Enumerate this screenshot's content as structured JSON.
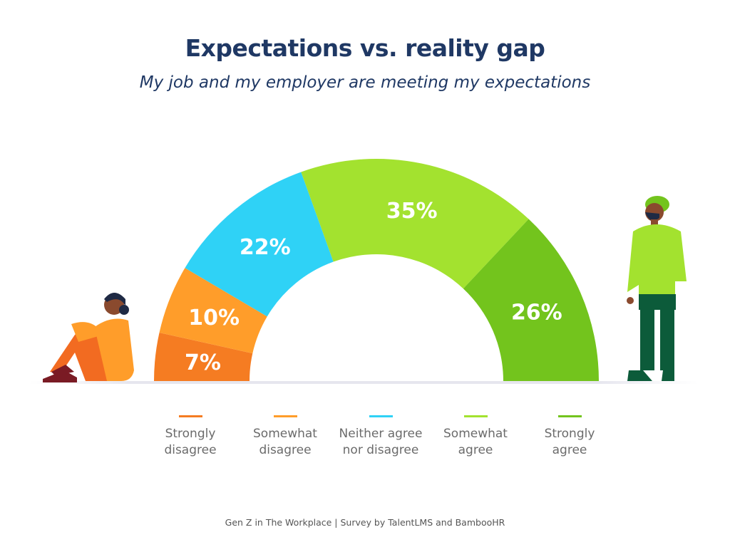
{
  "title": "Expectations vs. reality gap",
  "subtitle": "My job and my employer are meeting my expectations",
  "footer": "Gen Z in The Workplace | Survey by TalentLMS and BambooHR",
  "chart_data": {
    "type": "pie",
    "variant": "semi-donut",
    "title": "Expectations vs. reality gap",
    "subtitle": "My job and my employer are meeting my expectations",
    "legend_position": "bottom",
    "categories": [
      "Strongly disagree",
      "Somewhat disagree",
      "Neither agree nor disagree",
      "Somewhat agree",
      "Strongly agree"
    ],
    "legend_labels": [
      "Strongly\ndisagree",
      "Somewhat\ndisagree",
      "Neither agree\nnor disagree",
      "Somewhat\nagree",
      "Strongly\nagree"
    ],
    "values": [
      7,
      10,
      22,
      35,
      26
    ],
    "data_labels": [
      "7%",
      "10%",
      "22%",
      "35%",
      "26%"
    ],
    "colors": [
      "#f57c22",
      "#ff9d2a",
      "#2fd2f6",
      "#a3e22f",
      "#73c41d"
    ]
  }
}
